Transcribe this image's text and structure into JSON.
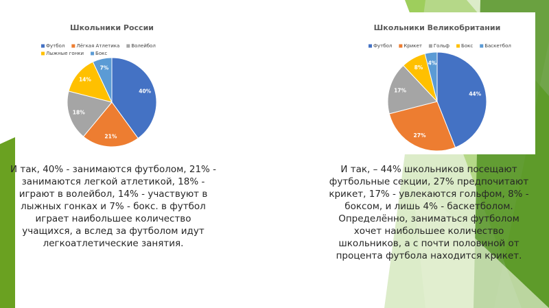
{
  "chart_data": [
    {
      "type": "pie",
      "title": "Школьники России",
      "categories": [
        "Футбол",
        "Лёгкая Атлетика",
        "Волейбол",
        "Лыжные гонки",
        "Бокс"
      ],
      "values": [
        40,
        21,
        18,
        14,
        7
      ],
      "value_labels": [
        "40%",
        "21%",
        "18%",
        "14%",
        "7%"
      ],
      "colors": [
        "#4472c4",
        "#ed7d31",
        "#a5a5a5",
        "#ffc000",
        "#5b9bd5"
      ]
    },
    {
      "type": "pie",
      "title": "Школьники Великобритании",
      "categories": [
        "Футбол",
        "Крикет",
        "Гольф",
        "Бокс",
        "Баскетбол"
      ],
      "values": [
        44,
        27,
        17,
        8,
        4
      ],
      "value_labels": [
        "44%",
        "27%",
        "17%",
        "8%",
        "4%"
      ],
      "colors": [
        "#4472c4",
        "#ed7d31",
        "#a5a5a5",
        "#ffc000",
        "#5b9bd5"
      ]
    }
  ],
  "texts": [
    [
      "И так, 40% - занимаются футболом, 21% -",
      "занимаются легкой атлетикой, 18% -",
      "играют в волейбол, 14% - участвуют в",
      "лыжных гонках и 7% - бокс. в футбол",
      "играет наибольшее количество",
      "учащихся, а вслед за футболом идут",
      "легкоатлетические занятия."
    ],
    [
      "И так,  – 44% школьников посещают",
      "футбольные секции, 27% предпочитают",
      "крикет, 17% - увлекаются гольфом, 8% -",
      "боксом, и лишь 4% - баскетболом.",
      "Определённо, заниматься футболом",
      "хочет наибольшее количество",
      "школьников, а с почти половиной от",
      "процента футбола находится крикет."
    ]
  ]
}
